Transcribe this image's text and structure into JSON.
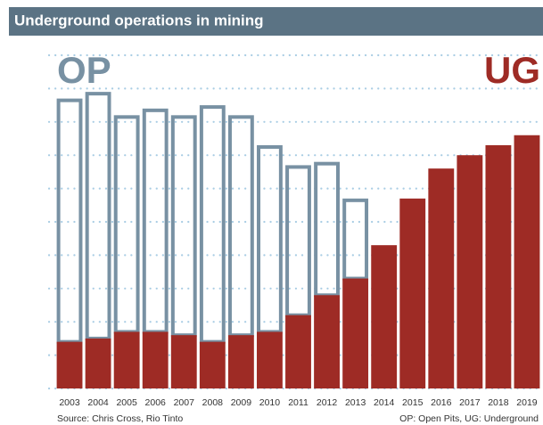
{
  "chart_data": {
    "type": "bar",
    "stacked": true,
    "title": "Underground operations in mining",
    "categories": [
      "2003",
      "2004",
      "2005",
      "2006",
      "2007",
      "2008",
      "2009",
      "2010",
      "2011",
      "2012",
      "2013",
      "2014",
      "2015",
      "2016",
      "2017",
      "2018",
      "2019"
    ],
    "series": [
      {
        "name": "UG",
        "color": "#9e2b25",
        "values": [
          1.4,
          1.5,
          1.7,
          1.7,
          1.6,
          1.4,
          1.6,
          1.7,
          2.2,
          2.8,
          3.3,
          4.3,
          5.7,
          6.6,
          7.0,
          7.3,
          7.6
        ]
      },
      {
        "name": "OP",
        "color": "#7891a3",
        "values": [
          7.3,
          7.4,
          6.5,
          6.7,
          6.6,
          7.1,
          6.6,
          5.6,
          4.5,
          4.0,
          2.4,
          null,
          null,
          null,
          null,
          null,
          null
        ]
      }
    ],
    "ylim": [
      0,
      10
    ],
    "yticks": [
      0,
      1,
      2,
      3,
      4,
      5,
      6,
      7,
      8,
      9,
      10
    ],
    "grid": true,
    "source": "Source: Chris Cross, Rio Tinto",
    "note": "OP: Open Pits, UG: Underground"
  }
}
